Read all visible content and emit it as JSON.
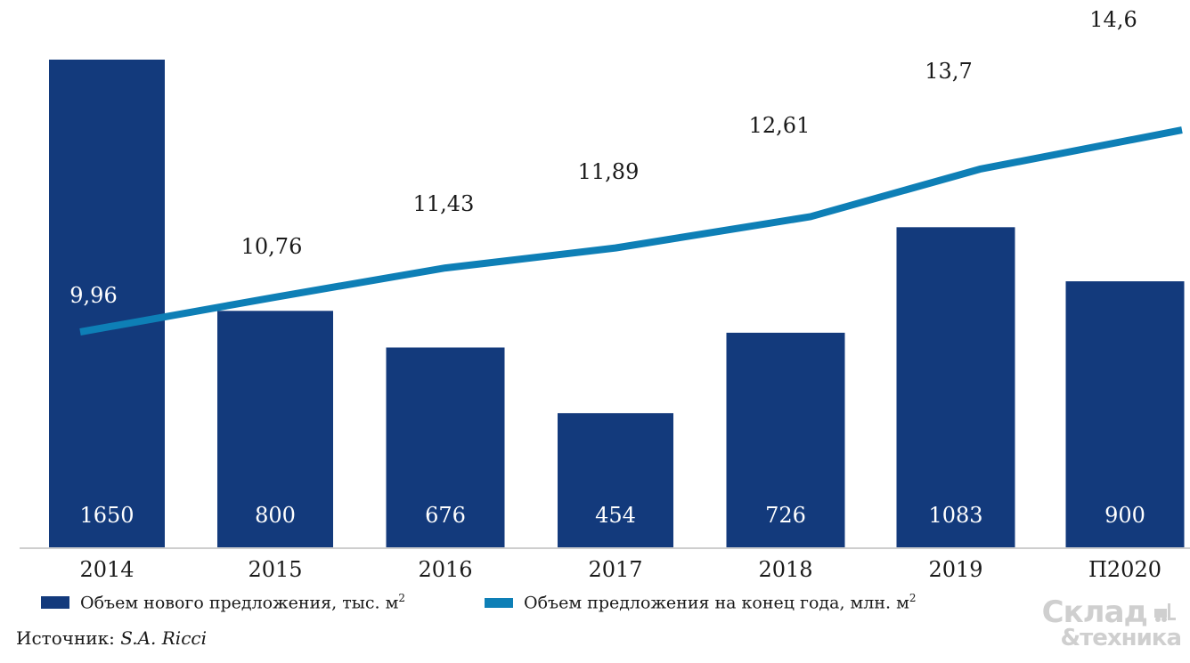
{
  "chart_data": {
    "type": "bar",
    "categories": [
      "2014",
      "2015",
      "2016",
      "2017",
      "2018",
      "2019",
      "П2020"
    ],
    "series": [
      {
        "name": "Объем нового предложения, тыс. м²",
        "type": "bar",
        "color": "#133a7c",
        "values": [
          1650,
          800,
          676,
          454,
          726,
          1083,
          900
        ]
      },
      {
        "name": "Объем предложения на конец года, млн. м²",
        "type": "line",
        "color": "#0e7fb6",
        "values": [
          9.96,
          10.76,
          11.43,
          11.89,
          12.61,
          13.7,
          14.6
        ]
      }
    ],
    "bar_labels": [
      "1650",
      "800",
      "676",
      "454",
      "726",
      "1083",
      "900"
    ],
    "line_labels": [
      "9,96",
      "10,76",
      "11,43",
      "11,89",
      "12,61",
      "13,7",
      "14,6"
    ],
    "legend_placement": "bottom",
    "grid": false
  },
  "legend": {
    "bar_label": "Объем нового предложения, тыс. м",
    "line_label": "Объем предложения на конец года, млн. м",
    "superscript": "2"
  },
  "source": {
    "prefix": "Источник: ",
    "name": "S.A. Ricci"
  },
  "logo": {
    "line1": "Склад",
    "line2": "&техника"
  }
}
